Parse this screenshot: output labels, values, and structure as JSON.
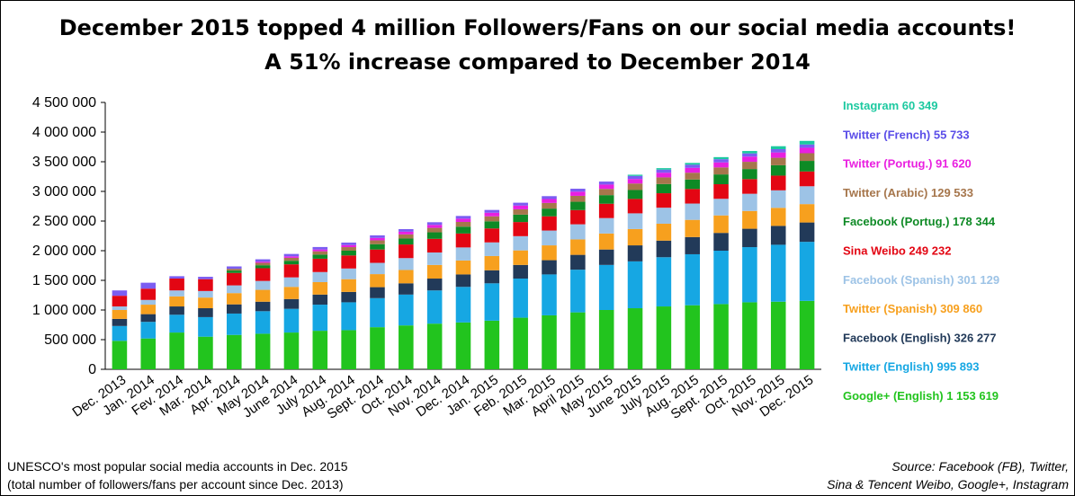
{
  "title": {
    "line1": "December 2015 topped 4 million Followers/Fans on our social media accounts!",
    "line2": "A 51% increase compared to December 2014"
  },
  "note": {
    "line1": "UNESCO's most popular social media accounts in Dec. 2015",
    "line2": "(total number of followers/fans per account since Dec. 2013)"
  },
  "source": {
    "line1": "Source: Facebook (FB), Twitter,",
    "line2": "Sina & Tencent Weibo, Google+, Instagram"
  },
  "chart_data": {
    "type": "bar",
    "stacked": true,
    "ylim": [
      0,
      4500000
    ],
    "ytick_labels": [
      "0",
      "500 000",
      "1 000 000",
      "1 500 000",
      "2 000 000",
      "2 500 000",
      "3 000 000",
      "3 500 000",
      "4 000 000",
      "4 500 000"
    ],
    "yticks": [
      0,
      500000,
      1000000,
      1500000,
      2000000,
      2500000,
      3000000,
      3500000,
      4000000,
      4500000
    ],
    "grid": false,
    "legend_placement": "right",
    "categories": [
      "Dec. 2013",
      "Jan. 2014",
      "Fev. 2014",
      "Mar. 2014",
      "Apr. 2014",
      "May 2014",
      "June 2014",
      "July 2014",
      "Aug. 2014",
      "Sept. 2014",
      "Oct. 2014",
      "Nov. 2014",
      "Dec. 2014",
      "Jan. 2015",
      "Feb. 2015",
      "Mar. 2015",
      "April 2015",
      "May 2015",
      "June 2015",
      "July 2015",
      "Aug. 2015",
      "Sept. 2015",
      "Oct. 2015",
      "Nov. 2015",
      "Dec. 2015"
    ],
    "series": [
      {
        "name": "Google+ (English) 1 153 619",
        "color": "#22c41e",
        "text_color": "#22c41e",
        "values": [
          480000,
          520000,
          620000,
          550000,
          580000,
          600000,
          620000,
          650000,
          660000,
          710000,
          740000,
          770000,
          790000,
          820000,
          870000,
          910000,
          960000,
          1000000,
          1030000,
          1060000,
          1080000,
          1100000,
          1130000,
          1140000,
          1153619
        ]
      },
      {
        "name": "Twitter (English) 995 893",
        "color": "#16a7e3",
        "text_color": "#16a7e3",
        "values": [
          250000,
          280000,
          300000,
          330000,
          360000,
          380000,
          400000,
          440000,
          470000,
          490000,
          520000,
          560000,
          600000,
          630000,
          660000,
          690000,
          720000,
          760000,
          790000,
          830000,
          860000,
          900000,
          930000,
          960000,
          995893
        ]
      },
      {
        "name": "Facebook (English) 326 277",
        "color": "#223a59",
        "text_color": "#223a59",
        "values": [
          120000,
          130000,
          140000,
          150000,
          155000,
          160000,
          165000,
          170000,
          175000,
          185000,
          190000,
          200000,
          210000,
          220000,
          230000,
          240000,
          250000,
          260000,
          270000,
          280000,
          290000,
          300000,
          310000,
          318000,
          326277
        ]
      },
      {
        "name": "Twitter (Spanish) 309 860",
        "color": "#f7a01e",
        "text_color": "#f7a01e",
        "values": [
          150000,
          160000,
          170000,
          180000,
          190000,
          200000,
          205000,
          210000,
          215000,
          220000,
          225000,
          230000,
          235000,
          240000,
          245000,
          250000,
          260000,
          270000,
          275000,
          285000,
          290000,
          295000,
          300000,
          305000,
          309860
        ]
      },
      {
        "name": "Facebook (Spanish) 301 129",
        "color": "#9dc3e6",
        "text_color": "#9dc3e6",
        "values": [
          60000,
          80000,
          100000,
          110000,
          130000,
          150000,
          160000,
          170000,
          180000,
          190000,
          200000,
          210000,
          220000,
          230000,
          240000,
          250000,
          255000,
          260000,
          265000,
          270000,
          275000,
          280000,
          290000,
          295000,
          301129
        ]
      },
      {
        "name": "Sina Weibo 249 232",
        "color": "#e30613",
        "text_color": "#e30613",
        "values": [
          180000,
          190000,
          200000,
          200000,
          210000,
          215000,
          220000,
          225000,
          220000,
          225000,
          230000,
          230000,
          235000,
          235000,
          238000,
          240000,
          240000,
          242000,
          243000,
          244000,
          245000,
          246000,
          247000,
          248000,
          249232
        ]
      },
      {
        "name": "Facebook (Portug.) 178 344",
        "color": "#0e8a25",
        "text_color": "#0e8a25",
        "values": [
          0,
          0,
          0,
          0,
          40000,
          50000,
          60000,
          70000,
          80000,
          90000,
          100000,
          110000,
          115000,
          120000,
          125000,
          130000,
          140000,
          145000,
          150000,
          155000,
          160000,
          165000,
          170000,
          175000,
          178344
        ]
      },
      {
        "name": "Twitter (Arabic) 129 533",
        "color": "#a6764c",
        "text_color": "#a6764c",
        "values": [
          0,
          0,
          0,
          0,
          30000,
          40000,
          50000,
          55000,
          60000,
          65000,
          70000,
          75000,
          80000,
          85000,
          90000,
          95000,
          100000,
          105000,
          110000,
          112000,
          115000,
          118000,
          122000,
          126000,
          129533
        ]
      },
      {
        "name": "Twitter (Portug.) 91 620",
        "color": "#e91fe0",
        "text_color": "#e91fe0",
        "values": [
          0,
          0,
          0,
          0,
          0,
          20000,
          25000,
          30000,
          35000,
          40000,
          45000,
          50000,
          55000,
          60000,
          63000,
          66000,
          70000,
          73000,
          76000,
          79000,
          82000,
          85000,
          88000,
          90000,
          91620
        ]
      },
      {
        "name": "Twitter (French) 55 733",
        "color": "#7b5df2",
        "text_color": "#5a4de8",
        "values": [
          90000,
          100000,
          40000,
          40000,
          40000,
          40000,
          40000,
          42000,
          42000,
          44000,
          44000,
          45000,
          46000,
          47000,
          48000,
          49000,
          50000,
          51000,
          52000,
          52000,
          53000,
          54000,
          54000,
          55000,
          55733
        ]
      },
      {
        "name": "Instagram 60 349",
        "color": "#1cc9a0",
        "text_color": "#1cc9a0",
        "values": [
          0,
          0,
          0,
          0,
          0,
          0,
          0,
          0,
          0,
          0,
          0,
          0,
          0,
          0,
          0,
          0,
          0,
          0,
          20000,
          25000,
          30000,
          35000,
          40000,
          50000,
          60349
        ]
      }
    ]
  }
}
